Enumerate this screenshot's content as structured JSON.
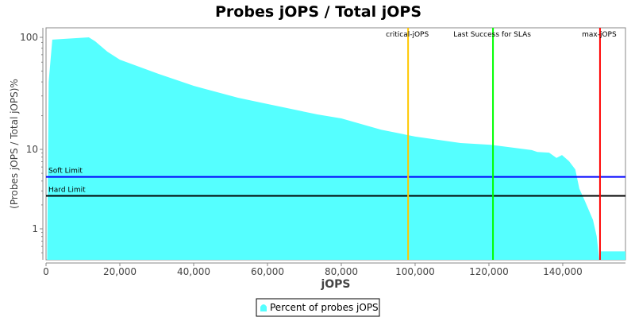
{
  "chart_data": {
    "type": "area",
    "title": "Probes jOPS / Total jOPS",
    "xlabel": "jOPS",
    "ylabel": "(Probes jOPS / Total jOPS)%",
    "xlim": [
      0,
      157000
    ],
    "ylim": [
      0.41,
      122
    ],
    "yscale": "log",
    "x_ticks": [
      0,
      20000,
      40000,
      60000,
      80000,
      100000,
      120000,
      140000
    ],
    "x_tick_labels": [
      "0",
      "20,000",
      "40,000",
      "60,000",
      "80,000",
      "100,000",
      "120,000",
      "140,000"
    ],
    "y_ticks": [
      1,
      10,
      100
    ],
    "y_tick_labels": [
      "1",
      "10",
      "100"
    ],
    "grid": false,
    "legend": {
      "placement": "bottom",
      "entries": [
        "Percent of probes jOPS"
      ]
    },
    "series": [
      {
        "name": "Percent of probes jOPS",
        "color": "#55FFFF",
        "points": [
          [
            300,
            0.41
          ],
          [
            700,
            40
          ],
          [
            1700,
            95.3
          ],
          [
            11600,
            100
          ],
          [
            13300,
            92.3
          ],
          [
            16600,
            74.5
          ],
          [
            20000,
            63.2
          ],
          [
            30500,
            47.2
          ],
          [
            40000,
            36.9
          ],
          [
            52000,
            28.9
          ],
          [
            60000,
            25.4
          ],
          [
            73500,
            20.5
          ],
          [
            80000,
            18.9
          ],
          [
            90800,
            15.0
          ],
          [
            100000,
            13.0
          ],
          [
            112300,
            11.4
          ],
          [
            120500,
            11.0
          ],
          [
            131600,
            9.8
          ],
          [
            133100,
            9.3
          ],
          [
            136300,
            9.1
          ],
          [
            138300,
            7.8
          ],
          [
            139800,
            8.5
          ],
          [
            141700,
            7.1
          ],
          [
            143400,
            5.6
          ],
          [
            144500,
            3.2
          ],
          [
            146000,
            2.24
          ],
          [
            148200,
            1.29
          ],
          [
            149200,
            0.81
          ],
          [
            149900,
            0.41
          ]
        ]
      },
      {
        "name": "Percent of probes jOPS",
        "color": "#55FFFF",
        "points": [
          [
            150300,
            0.52
          ],
          [
            157000,
            0.52
          ]
        ]
      }
    ],
    "horizontal_markers": [
      {
        "label": "Soft Limit",
        "value": 4.5,
        "color": "#0000FF"
      },
      {
        "label": "Hard Limit",
        "value": 2.6,
        "color": "#000000"
      }
    ],
    "vertical_markers": [
      {
        "label": "critical-jOPS",
        "value": 98100,
        "color": "#FFC800"
      },
      {
        "label": "Last Success for SLAs",
        "value": 121100,
        "color": "#00FF00"
      },
      {
        "label": "max-jOPS",
        "value": 150100,
        "color": "#FF0000"
      }
    ]
  }
}
